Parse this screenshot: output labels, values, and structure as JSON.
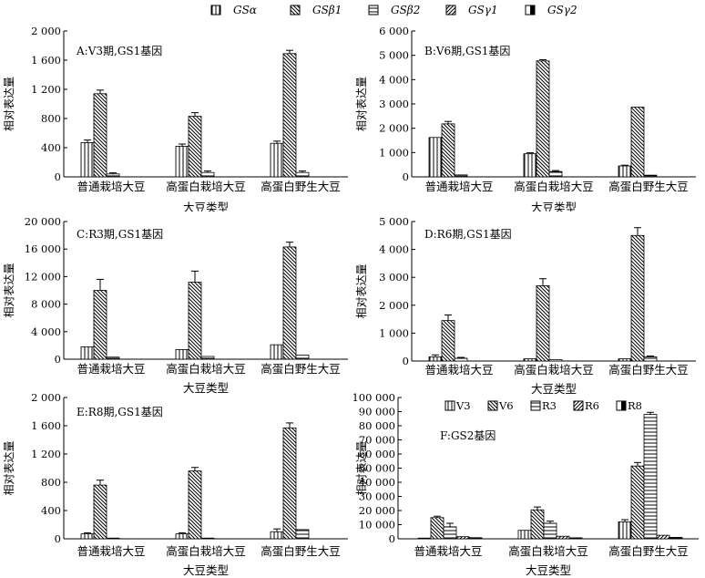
{
  "legend": {
    "series": [
      "GSα",
      "GSβ1",
      "GSβ2",
      "GSγ1",
      "GSγ2"
    ]
  },
  "chart_data": [
    {
      "id": "A",
      "type": "bar",
      "title": "A:V3期,GS1基因",
      "xlabel": "大豆类型",
      "ylabel": "相对表达量",
      "categories": [
        "普通栽培大豆",
        "高蛋白栽培大豆",
        "高蛋白野生大豆"
      ],
      "ylim": [
        0,
        2000
      ],
      "yticks": [
        0,
        400,
        800,
        1200,
        1600,
        2000
      ],
      "ytick_labels": [
        "0",
        "400",
        "800",
        "1 200",
        "1 600",
        "2 000"
      ],
      "series": [
        {
          "name": "GSα",
          "pattern": "vert",
          "values": [
            470,
            420,
            460
          ],
          "errors": [
            35,
            30,
            30
          ]
        },
        {
          "name": "GSβ1",
          "pattern": "diagR",
          "values": [
            1140,
            830,
            1690
          ],
          "errors": [
            50,
            50,
            45
          ]
        },
        {
          "name": "GSβ2",
          "pattern": "horiz",
          "values": [
            40,
            60,
            60
          ],
          "errors": [
            15,
            20,
            20
          ]
        },
        {
          "name": "GSγ1",
          "pattern": "diagL",
          "values": [
            0,
            0,
            0
          ],
          "errors": [
            0,
            0,
            0
          ]
        },
        {
          "name": "GSγ2",
          "pattern": "solid",
          "values": [
            0,
            0,
            0
          ],
          "errors": [
            0,
            0,
            0
          ]
        }
      ]
    },
    {
      "id": "B",
      "type": "bar",
      "title": "B:V6期,GS1基因",
      "xlabel": "大豆类型",
      "ylabel": "相对表达量",
      "categories": [
        "普通栽培大豆",
        "高蛋白栽培大豆",
        "高蛋白野生大豆"
      ],
      "ylim": [
        0,
        6000
      ],
      "yticks": [
        0,
        1000,
        2000,
        3000,
        4000,
        5000,
        6000
      ],
      "ytick_labels": [
        "0",
        "1 000",
        "2 000",
        "3 000",
        "4 000",
        "5 000",
        "6 000"
      ],
      "series": [
        {
          "name": "GSα",
          "pattern": "vert",
          "values": [
            1620,
            950,
            450
          ],
          "errors": [
            0,
            40,
            30
          ]
        },
        {
          "name": "GSβ1",
          "pattern": "diagR",
          "values": [
            2180,
            4770,
            2870
          ],
          "errors": [
            100,
            50,
            0
          ]
        },
        {
          "name": "GSβ2",
          "pattern": "horiz",
          "values": [
            80,
            220,
            70
          ],
          "errors": [
            0,
            40,
            0
          ]
        },
        {
          "name": "GSγ1",
          "pattern": "diagL",
          "values": [
            0,
            0,
            0
          ],
          "errors": [
            0,
            0,
            0
          ]
        },
        {
          "name": "GSγ2",
          "pattern": "solid",
          "values": [
            0,
            0,
            0
          ],
          "errors": [
            0,
            0,
            0
          ]
        }
      ]
    },
    {
      "id": "C",
      "type": "bar",
      "title": "C:R3期,GS1基因",
      "xlabel": "大豆类型",
      "ylabel": "相对表达量",
      "categories": [
        "普通栽培大豆",
        "高蛋白栽培大豆",
        "高蛋白野生大豆"
      ],
      "ylim": [
        0,
        20000
      ],
      "yticks": [
        0,
        4000,
        8000,
        12000,
        16000,
        20000
      ],
      "ytick_labels": [
        "0",
        "4 000",
        "8 000",
        "12 000",
        "16 000",
        "20 000"
      ],
      "series": [
        {
          "name": "GSα",
          "pattern": "vert",
          "values": [
            1800,
            1400,
            2100
          ],
          "errors": [
            0,
            0,
            0
          ]
        },
        {
          "name": "GSβ1",
          "pattern": "diagR",
          "values": [
            10000,
            11200,
            16300
          ],
          "errors": [
            1600,
            1600,
            700
          ]
        },
        {
          "name": "GSβ2",
          "pattern": "horiz",
          "values": [
            300,
            400,
            600
          ],
          "errors": [
            0,
            0,
            0
          ]
        },
        {
          "name": "GSγ1",
          "pattern": "diagL",
          "values": [
            0,
            0,
            0
          ],
          "errors": [
            0,
            0,
            0
          ]
        },
        {
          "name": "GSγ2",
          "pattern": "solid",
          "values": [
            0,
            0,
            0
          ],
          "errors": [
            0,
            0,
            0
          ]
        }
      ]
    },
    {
      "id": "D",
      "type": "bar",
      "title": "D:R6期,GS1基因",
      "xlabel": "大豆类型",
      "ylabel": "相对表达量",
      "categories": [
        "普通栽培大豆",
        "高蛋白栽培大豆",
        "高蛋白野生大豆"
      ],
      "ylim": [
        0,
        5000
      ],
      "yticks": [
        0,
        1000,
        2000,
        3000,
        4000,
        5000
      ],
      "ytick_labels": [
        "0",
        "1 000",
        "2 000",
        "3 000",
        "4 000",
        "5 000"
      ],
      "series": [
        {
          "name": "GSα",
          "pattern": "vert",
          "values": [
            150,
            80,
            80
          ],
          "errors": [
            70,
            0,
            0
          ]
        },
        {
          "name": "GSβ1",
          "pattern": "diagR",
          "values": [
            1450,
            2700,
            4500
          ],
          "errors": [
            200,
            250,
            280
          ]
        },
        {
          "name": "GSβ2",
          "pattern": "horiz",
          "values": [
            100,
            50,
            150
          ],
          "errors": [
            30,
            0,
            30
          ]
        },
        {
          "name": "GSγ1",
          "pattern": "diagL",
          "values": [
            0,
            0,
            0
          ],
          "errors": [
            0,
            0,
            0
          ]
        },
        {
          "name": "GSγ2",
          "pattern": "solid",
          "values": [
            0,
            0,
            0
          ],
          "errors": [
            0,
            0,
            0
          ]
        }
      ]
    },
    {
      "id": "E",
      "type": "bar",
      "title": "E:R8期,GS1基因",
      "xlabel": "大豆类型",
      "ylabel": "相对表达量",
      "categories": [
        "普通栽培大豆",
        "高蛋白栽培大豆",
        "高蛋白野生大豆"
      ],
      "ylim": [
        0,
        2000
      ],
      "yticks": [
        0,
        400,
        800,
        1200,
        1600,
        2000
      ],
      "ytick_labels": [
        "0",
        "400",
        "800",
        "1 200",
        "1 600",
        "2 000"
      ],
      "series": [
        {
          "name": "GSα",
          "pattern": "vert",
          "values": [
            70,
            70,
            100
          ],
          "errors": [
            15,
            15,
            40
          ]
        },
        {
          "name": "GSβ1",
          "pattern": "diagR",
          "values": [
            760,
            960,
            1570
          ],
          "errors": [
            70,
            50,
            70
          ]
        },
        {
          "name": "GSβ2",
          "pattern": "horiz",
          "values": [
            10,
            10,
            130
          ],
          "errors": [
            0,
            0,
            0
          ]
        },
        {
          "name": "GSγ1",
          "pattern": "diagL",
          "values": [
            0,
            0,
            0
          ],
          "errors": [
            0,
            0,
            0
          ]
        },
        {
          "name": "GSγ2",
          "pattern": "solid",
          "values": [
            0,
            0,
            0
          ],
          "errors": [
            0,
            0,
            0
          ]
        }
      ]
    },
    {
      "id": "F",
      "type": "bar",
      "title": "F:GS2基因",
      "xlabel": "大豆类型",
      "ylabel": "相对表达量",
      "categories": [
        "普通栽培大豆",
        "高蛋白栽培大豆",
        "高蛋白野生大豆"
      ],
      "ylim": [
        0,
        100000
      ],
      "yticks": [
        0,
        10000,
        20000,
        30000,
        40000,
        50000,
        60000,
        70000,
        80000,
        90000,
        100000
      ],
      "ytick_labels": [
        "0",
        "10 000",
        "20 000",
        "30 000",
        "40 000",
        "50 000",
        "60 000",
        "70 000",
        "80 000",
        "90 000",
        "100 000"
      ],
      "legend_labels": [
        "V3",
        "V6",
        "R3",
        "R6",
        "R8"
      ],
      "series": [
        {
          "name": "V3",
          "pattern": "vert",
          "values": [
            500,
            6000,
            12000
          ],
          "errors": [
            0,
            0,
            1500
          ]
        },
        {
          "name": "V6",
          "pattern": "diagR",
          "values": [
            15000,
            20500,
            51500
          ],
          "errors": [
            1000,
            2000,
            2500
          ]
        },
        {
          "name": "R3",
          "pattern": "horiz",
          "values": [
            8500,
            11000,
            88000
          ],
          "errors": [
            2500,
            1500,
            1500
          ]
        },
        {
          "name": "R6",
          "pattern": "diagL",
          "values": [
            1500,
            1800,
            2500
          ],
          "errors": [
            0,
            0,
            0
          ]
        },
        {
          "name": "R8",
          "pattern": "solid",
          "values": [
            800,
            700,
            1000
          ],
          "errors": [
            0,
            0,
            0
          ]
        }
      ]
    }
  ]
}
